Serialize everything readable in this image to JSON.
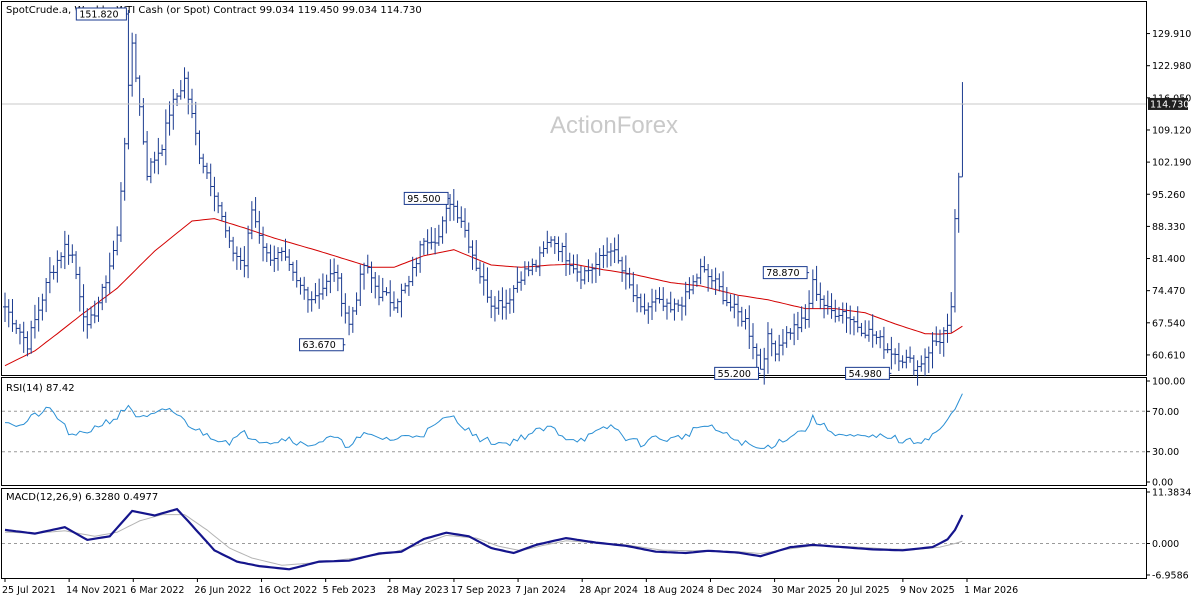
{
  "chart_data": [
    {
      "type": "ohlc",
      "header": "SpotCrude.a, Weekly:  WTI Cash (or Spot) Contract  99.034 119.450 99.034 114.730",
      "watermark": "ActionForex",
      "ylim": [
        56.5,
        136.5
      ],
      "yticks": [
        "129.910",
        "122.980",
        "116.050",
        "109.120",
        "102.190",
        "95.260",
        "88.330",
        "81.400",
        "74.470",
        "67.540",
        "60.610"
      ],
      "current_price": "114.730",
      "xtick_labels": [
        "25 Jul 2021",
        "14 Nov 2021",
        "6 Mar 2022",
        "26 Jun 2022",
        "16 Oct 2022",
        "5 Feb 2023",
        "28 May 2023",
        "17 Sep 2023",
        "7 Jan 2024",
        "28 Apr 2024",
        "18 Aug 2024",
        "8 Dec 2024",
        "30 Mar 2025",
        "20 Jul 2025",
        "9 Nov 2025",
        "1 Mar 2026"
      ],
      "annotations": [
        {
          "text": "151.820",
          "index": 33
        },
        {
          "text": "95.500",
          "index": 119
        },
        {
          "text": "63.670",
          "index": 91
        },
        {
          "text": "78.870",
          "index": 215
        },
        {
          "text": "55.200",
          "index": 202
        },
        {
          "text": "54.980",
          "index": 237
        }
      ],
      "anchors": [
        [
          0,
          71
        ],
        [
          6,
          63
        ],
        [
          12,
          78
        ],
        [
          16,
          84
        ],
        [
          18,
          82
        ],
        [
          22,
          66
        ],
        [
          26,
          74
        ],
        [
          30,
          86
        ],
        [
          34,
          128
        ],
        [
          38,
          100
        ],
        [
          42,
          106
        ],
        [
          44,
          113
        ],
        [
          48,
          120
        ],
        [
          52,
          104
        ],
        [
          56,
          96
        ],
        [
          60,
          84
        ],
        [
          64,
          80
        ],
        [
          66,
          92
        ],
        [
          70,
          82
        ],
        [
          74,
          82
        ],
        [
          78,
          76
        ],
        [
          82,
          73
        ],
        [
          86,
          76
        ],
        [
          88,
          79
        ],
        [
          92,
          67
        ],
        [
          96,
          80
        ],
        [
          100,
          74
        ],
        [
          104,
          72
        ],
        [
          108,
          76
        ],
        [
          112,
          86
        ],
        [
          116,
          86
        ],
        [
          119,
          94
        ],
        [
          122,
          90
        ],
        [
          126,
          80
        ],
        [
          130,
          72
        ],
        [
          134,
          72
        ],
        [
          138,
          78
        ],
        [
          142,
          80
        ],
        [
          146,
          86
        ],
        [
          150,
          82
        ],
        [
          154,
          78
        ],
        [
          158,
          80
        ],
        [
          162,
          84
        ],
        [
          166,
          77
        ],
        [
          170,
          70
        ],
        [
          174,
          72
        ],
        [
          178,
          70
        ],
        [
          182,
          73
        ],
        [
          186,
          79
        ],
        [
          190,
          76
        ],
        [
          194,
          71
        ],
        [
          198,
          68
        ],
        [
          202,
          58
        ],
        [
          204,
          64
        ],
        [
          206,
          62
        ],
        [
          210,
          66
        ],
        [
          214,
          68
        ],
        [
          216,
          76
        ],
        [
          220,
          70
        ],
        [
          224,
          70
        ],
        [
          228,
          67
        ],
        [
          232,
          65
        ],
        [
          236,
          62
        ],
        [
          240,
          60
        ],
        [
          244,
          58
        ],
        [
          248,
          63
        ],
        [
          250,
          64
        ],
        [
          252,
          67
        ],
        [
          253,
          71
        ],
        [
          254,
          90
        ],
        [
          255,
          99
        ],
        [
          256,
          114.7
        ]
      ],
      "ma": {
        "color": "#d30000",
        "anchors": [
          [
            0,
            58.3
          ],
          [
            8,
            61.5
          ],
          [
            14,
            65.2
          ],
          [
            20,
            69
          ],
          [
            30,
            75
          ],
          [
            40,
            83
          ],
          [
            50,
            89.5
          ],
          [
            56,
            90
          ],
          [
            64,
            88
          ],
          [
            72,
            85.8
          ],
          [
            84,
            83
          ],
          [
            98,
            79.5
          ],
          [
            104,
            79.5
          ],
          [
            112,
            82
          ],
          [
            120,
            83.3
          ],
          [
            130,
            80
          ],
          [
            138,
            79.5
          ],
          [
            146,
            80
          ],
          [
            152,
            80.2
          ],
          [
            160,
            79
          ],
          [
            168,
            78
          ],
          [
            178,
            76.2
          ],
          [
            186,
            75.5
          ],
          [
            196,
            73.5
          ],
          [
            204,
            72.5
          ],
          [
            214,
            70.6
          ],
          [
            222,
            70.6
          ],
          [
            230,
            69.7
          ],
          [
            238,
            67.3
          ],
          [
            246,
            65.2
          ],
          [
            250,
            65.1
          ],
          [
            253,
            65.3
          ],
          [
            256,
            66.8
          ]
        ]
      },
      "bar_color": "#1a3a8f"
    },
    {
      "type": "line",
      "label": "RSI(14) 87.42",
      "ylim": [
        0,
        100
      ],
      "yticks": [
        "100.00",
        "70.00",
        "30.00",
        "0.00"
      ],
      "levels": [
        70,
        30
      ],
      "color": "#2a8fd4",
      "anchors": [
        [
          0,
          62
        ],
        [
          4,
          55
        ],
        [
          8,
          66
        ],
        [
          12,
          72
        ],
        [
          15,
          60
        ],
        [
          18,
          44
        ],
        [
          22,
          50
        ],
        [
          26,
          58
        ],
        [
          30,
          64
        ],
        [
          33,
          76
        ],
        [
          36,
          62
        ],
        [
          40,
          66
        ],
        [
          44,
          73
        ],
        [
          48,
          60
        ],
        [
          52,
          50
        ],
        [
          56,
          44
        ],
        [
          60,
          40
        ],
        [
          64,
          48
        ],
        [
          68,
          42
        ],
        [
          72,
          40
        ],
        [
          76,
          44
        ],
        [
          80,
          36
        ],
        [
          84,
          40
        ],
        [
          88,
          44
        ],
        [
          91,
          36
        ],
        [
          96,
          46
        ],
        [
          100,
          44
        ],
        [
          104,
          42
        ],
        [
          108,
          46
        ],
        [
          112,
          48
        ],
        [
          116,
          58
        ],
        [
          119,
          66
        ],
        [
          122,
          58
        ],
        [
          126,
          44
        ],
        [
          130,
          40
        ],
        [
          134,
          38
        ],
        [
          138,
          44
        ],
        [
          142,
          50
        ],
        [
          146,
          54
        ],
        [
          150,
          44
        ],
        [
          154,
          42
        ],
        [
          158,
          48
        ],
        [
          162,
          56
        ],
        [
          166,
          44
        ],
        [
          170,
          38
        ],
        [
          174,
          44
        ],
        [
          178,
          42
        ],
        [
          182,
          46
        ],
        [
          186,
          56
        ],
        [
          190,
          52
        ],
        [
          194,
          44
        ],
        [
          198,
          38
        ],
        [
          202,
          32
        ],
        [
          206,
          38
        ],
        [
          210,
          46
        ],
        [
          214,
          52
        ],
        [
          216,
          63
        ],
        [
          220,
          52
        ],
        [
          224,
          46
        ],
        [
          228,
          44
        ],
        [
          232,
          44
        ],
        [
          236,
          46
        ],
        [
          240,
          40
        ],
        [
          244,
          40
        ],
        [
          248,
          46
        ],
        [
          252,
          60
        ],
        [
          254,
          72
        ],
        [
          256,
          87.4
        ]
      ]
    },
    {
      "type": "line",
      "label": "MACD(12,26,9) 6.3280 0.4977",
      "ylim": [
        -6.9586,
        11.3834
      ],
      "yticks": [
        "11.3834",
        "0.000",
        "-6.9586"
      ],
      "main_color": "#15158c",
      "signal_color": "#b4b4b4",
      "macd_anchors": [
        [
          0,
          3
        ],
        [
          8,
          2.2
        ],
        [
          16,
          3.6
        ],
        [
          22,
          0.8
        ],
        [
          28,
          1.6
        ],
        [
          34,
          7.2
        ],
        [
          40,
          6.2
        ],
        [
          46,
          7.6
        ],
        [
          50,
          4
        ],
        [
          56,
          -1.5
        ],
        [
          62,
          -4
        ],
        [
          68,
          -5
        ],
        [
          76,
          -5.7
        ],
        [
          84,
          -4
        ],
        [
          92,
          -3.8
        ],
        [
          100,
          -2.2
        ],
        [
          106,
          -1.8
        ],
        [
          112,
          1
        ],
        [
          118,
          2.4
        ],
        [
          124,
          1.6
        ],
        [
          130,
          -1
        ],
        [
          136,
          -2.1
        ],
        [
          142,
          -0.3
        ],
        [
          150,
          1.2
        ],
        [
          158,
          0.2
        ],
        [
          166,
          -0.5
        ],
        [
          174,
          -1.8
        ],
        [
          182,
          -2.1
        ],
        [
          188,
          -1.6
        ],
        [
          196,
          -2
        ],
        [
          202,
          -2.8
        ],
        [
          210,
          -0.8
        ],
        [
          216,
          -0.3
        ],
        [
          224,
          -0.8
        ],
        [
          232,
          -1.3
        ],
        [
          240,
          -1.5
        ],
        [
          248,
          -0.8
        ],
        [
          252,
          0.9
        ],
        [
          254,
          3
        ],
        [
          256,
          6.3
        ]
      ],
      "signal_anchors": [
        [
          0,
          2.5
        ],
        [
          8,
          2.3
        ],
        [
          16,
          2.8
        ],
        [
          24,
          1.6
        ],
        [
          30,
          2.5
        ],
        [
          36,
          5
        ],
        [
          42,
          6.4
        ],
        [
          48,
          6.4
        ],
        [
          54,
          3
        ],
        [
          60,
          -1
        ],
        [
          66,
          -3.2
        ],
        [
          74,
          -4.8
        ],
        [
          84,
          -4.2
        ],
        [
          96,
          -3
        ],
        [
          104,
          -1.9
        ],
        [
          112,
          0
        ],
        [
          118,
          1.8
        ],
        [
          126,
          1.2
        ],
        [
          132,
          -0.6
        ],
        [
          138,
          -1.6
        ],
        [
          144,
          -0.4
        ],
        [
          150,
          0.6
        ],
        [
          158,
          0.2
        ],
        [
          166,
          -0.3
        ],
        [
          176,
          -1.5
        ],
        [
          186,
          -1.6
        ],
        [
          196,
          -1.8
        ],
        [
          202,
          -2.2
        ],
        [
          208,
          -1.4
        ],
        [
          216,
          -0.5
        ],
        [
          226,
          -0.7
        ],
        [
          236,
          -1.2
        ],
        [
          244,
          -1.3
        ],
        [
          250,
          -0.8
        ],
        [
          254,
          0
        ],
        [
          256,
          0.5
        ]
      ]
    }
  ]
}
